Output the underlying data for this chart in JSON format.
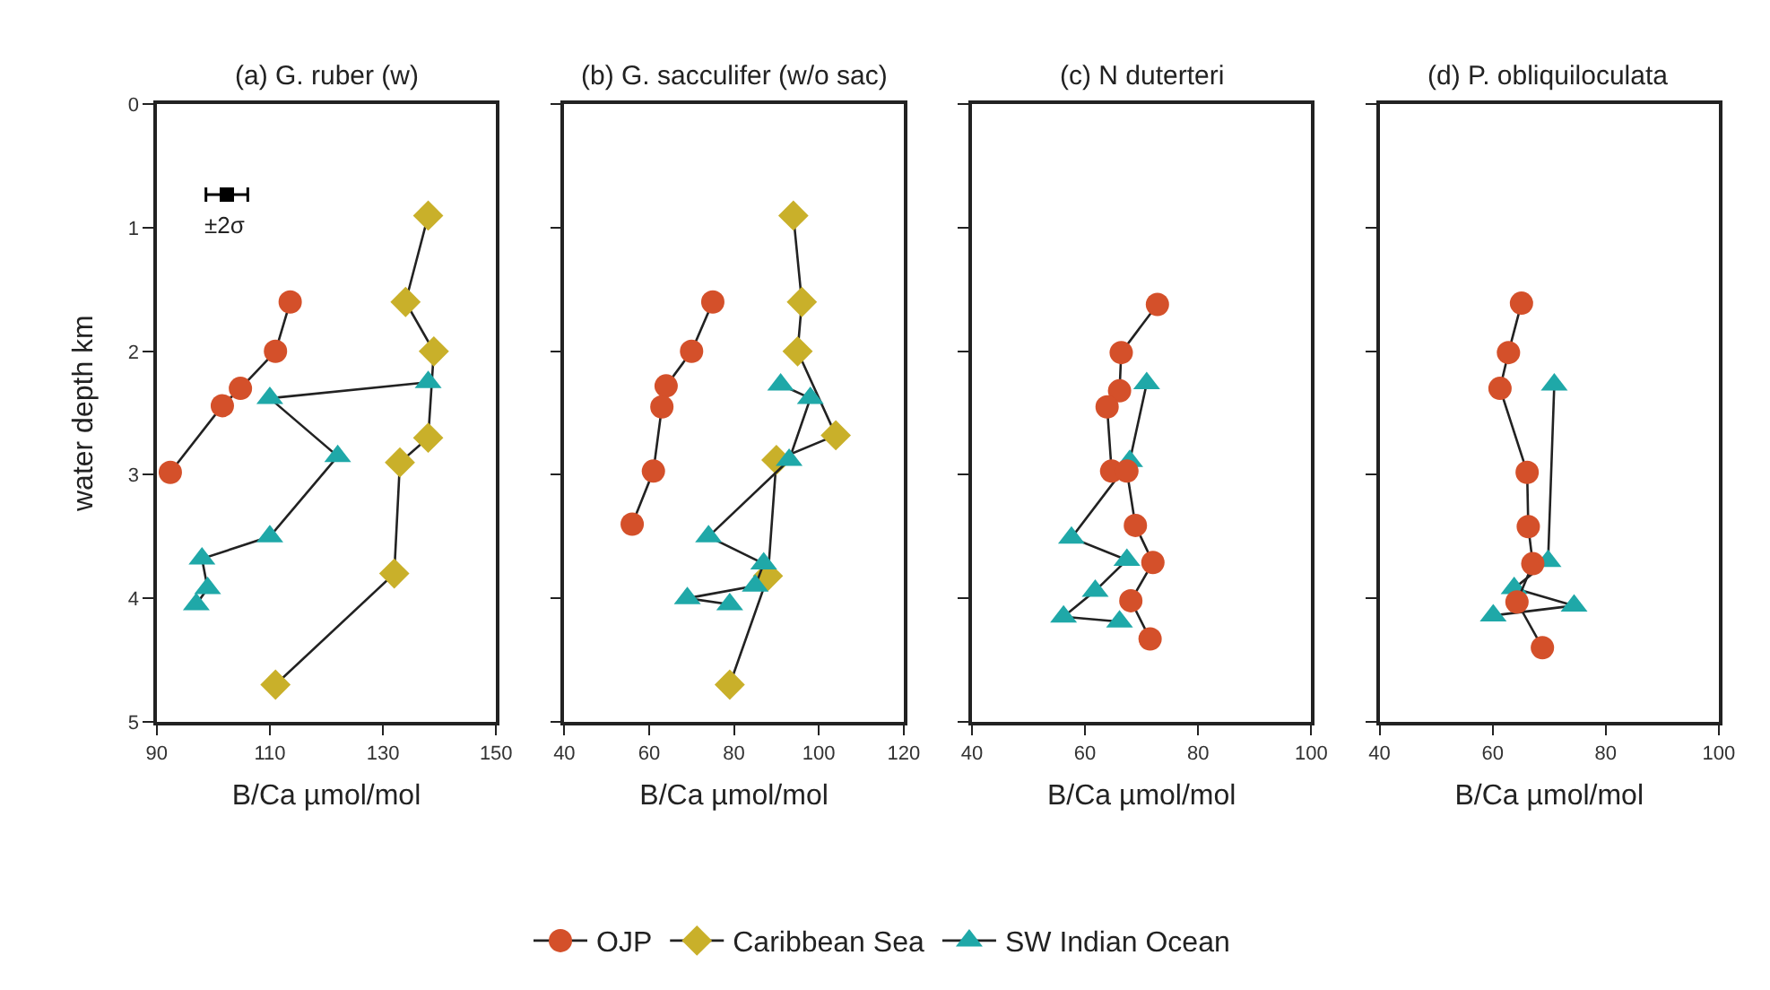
{
  "chart_data": [
    {
      "type": "line",
      "title": "(a) G. ruber (w)",
      "xlabel": "B/Ca µmol/mol",
      "ylabel": "water depth km",
      "xlim": [
        90,
        150
      ],
      "xticks": [
        90,
        110,
        130,
        150
      ],
      "ylim": [
        5,
        0
      ],
      "yticks": [
        0,
        1,
        2,
        3,
        4,
        5
      ],
      "legend": "bottom",
      "line_style": "solid",
      "series": [
        {
          "name": "OJP",
          "color": "#d4502a",
          "marker": "circle",
          "x": [
            113.6,
            111.0,
            104.8,
            101.6,
            92.4
          ],
          "values": [
            1.6,
            2.0,
            2.3,
            2.44,
            2.98
          ]
        },
        {
          "name": "Caribbean Sea",
          "color": "#c9b02a",
          "marker": "diamond",
          "x": [
            138,
            134,
            139,
            138,
            133,
            132,
            111
          ],
          "values": [
            0.9,
            1.6,
            2.0,
            2.7,
            2.9,
            3.8,
            4.7
          ]
        },
        {
          "name": "SW Indian Ocean",
          "color": "#1fa8a8",
          "marker": "triangle",
          "x": [
            138,
            110,
            122,
            110,
            98,
            99,
            97
          ],
          "values": [
            2.25,
            2.38,
            2.85,
            3.5,
            3.68,
            3.92,
            4.05
          ]
        },
        {
          "type": "scatter",
          "color": "#000000",
          "marker": "square",
          "x": [
            102.4
          ],
          "values": [
            0.73
          ],
          "xerrors": [
            3.7
          ]
        }
      ],
      "annotations": [
        "±2σ"
      ]
    },
    {
      "type": "line",
      "title": "(b) G. sacculifer (w/o sac)",
      "xlabel": "B/Ca µmol/mol",
      "xlim": [
        40,
        120
      ],
      "xticks": [
        40,
        60,
        80,
        100,
        120
      ],
      "ylim": [
        5,
        0
      ],
      "yticks": [
        {
          "value": 0,
          "label": null
        },
        {
          "value": 1,
          "label": null
        },
        {
          "value": 2,
          "label": null
        },
        {
          "value": 3,
          "label": null
        },
        {
          "value": 4,
          "label": null
        },
        {
          "value": 5,
          "label": null
        }
      ],
      "tick_labels": "x",
      "line_style": "solid",
      "series": [
        {
          "name": "OJP",
          "color": "#d4502a",
          "marker": "circle",
          "x": [
            75,
            70,
            64,
            63,
            61,
            56
          ],
          "values": [
            1.6,
            2.0,
            2.28,
            2.45,
            2.97,
            3.4
          ]
        },
        {
          "name": "Caribbean Sea",
          "color": "#c9b02a",
          "marker": "diamond",
          "x": [
            94,
            96,
            95,
            104,
            90,
            88,
            79
          ],
          "values": [
            0.9,
            1.6,
            2.0,
            2.68,
            2.88,
            3.82,
            4.7
          ]
        },
        {
          "name": "SW Indian Ocean",
          "color": "#1fa8a8",
          "marker": "triangle",
          "x": [
            91,
            98,
            93,
            74,
            87,
            85,
            69,
            79
          ],
          "values": [
            2.27,
            2.38,
            2.88,
            3.5,
            3.72,
            3.9,
            4.0,
            4.05
          ]
        }
      ]
    },
    {
      "type": "line",
      "title": "(c) N duterteri",
      "xlabel": "B/Ca µmol/mol",
      "xlim": [
        40,
        100
      ],
      "xticks": [
        40,
        60,
        80,
        100
      ],
      "ylim": [
        5,
        0
      ],
      "yticks": [
        {
          "value": 0,
          "label": null
        },
        {
          "value": 1,
          "label": null
        },
        {
          "value": 2,
          "label": null
        },
        {
          "value": 3,
          "label": null
        },
        {
          "value": 4,
          "label": null
        },
        {
          "value": 5,
          "label": null
        }
      ],
      "tick_labels": "x",
      "line_style": "solid",
      "series": [
        {
          "name": "SW Indian Ocean",
          "color": "#1fa8a8",
          "marker": "triangle",
          "x": [
            70.9,
            67.9,
            57.6,
            67.4,
            61.8,
            56.2,
            66.1
          ],
          "values": [
            2.26,
            2.89,
            3.51,
            3.69,
            3.94,
            4.15,
            4.19
          ]
        },
        {
          "name": "OJP",
          "color": "#d4502a",
          "marker": "circle",
          "x": [
            72.8,
            66.4,
            66.1,
            63.9,
            64.7,
            67.4,
            68.9,
            72,
            68.1,
            71.5
          ],
          "values": [
            1.62,
            2.01,
            2.32,
            2.45,
            2.97,
            2.97,
            3.41,
            3.71,
            4.02,
            4.33
          ]
        }
      ]
    },
    {
      "type": "line",
      "title": "(d) P. obliquiloculata",
      "xlabel": "B/Ca µmol/mol",
      "xlim": [
        40,
        100
      ],
      "xticks": [
        40,
        60,
        80,
        100
      ],
      "ylim": [
        5,
        0
      ],
      "yticks": [
        {
          "value": 0,
          "label": null
        },
        {
          "value": 1,
          "label": null
        },
        {
          "value": 2,
          "label": null
        },
        {
          "value": 3,
          "label": null
        },
        {
          "value": 4,
          "label": null
        },
        {
          "value": 5,
          "label": null
        }
      ],
      "tick_labels": "x",
      "line_style": "solid",
      "series": [
        {
          "name": "SW Indian Ocean",
          "color": "#1fa8a8",
          "marker": "triangle",
          "x": [
            70.9,
            69.8,
            63.8,
            74.4,
            60.1
          ],
          "values": [
            2.27,
            3.7,
            3.92,
            4.06,
            4.14
          ]
        },
        {
          "name": "OJP",
          "color": "#d4502a",
          "marker": "circle",
          "x": [
            65.1,
            62.8,
            61.3,
            66.1,
            66.3,
            67.1,
            64.3,
            68.8
          ],
          "values": [
            1.61,
            2.01,
            2.3,
            2.98,
            3.42,
            3.72,
            4.03,
            4.4
          ]
        }
      ]
    }
  ]
}
